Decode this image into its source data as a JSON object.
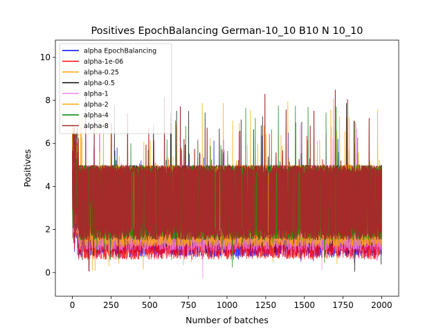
{
  "chart_data": {
    "type": "line",
    "title": "Positives EpochBalancing German-10_10 B10 N 10_10",
    "xlabel": "Number of batches",
    "ylabel": "Positives",
    "xlim": [
      -110,
      2110
    ],
    "ylim": [
      -1.1,
      10.8
    ],
    "xticks": [
      0,
      250,
      500,
      750,
      1000,
      1250,
      1500,
      1750,
      2000
    ],
    "yticks": [
      0,
      2,
      4,
      6,
      8,
      10
    ],
    "grid": false,
    "legend_position": "upper-left",
    "series": [
      {
        "name": "alpha EpochBalancing",
        "color": "#0000ff",
        "values_low": 0.5,
        "values_high": 6.5,
        "typical_low": 0.7,
        "typical_high": 5.0
      },
      {
        "name": "alpha-1e-06",
        "color": "#ff0000",
        "values_low": 0.5,
        "values_high": 6.5,
        "typical_low": 0.6,
        "typical_high": 5.0
      },
      {
        "name": "alpha-0.25",
        "color": "#ffa500",
        "values_low": 0.0,
        "values_high": 8.2,
        "typical_low": 1.2,
        "typical_high": 5.0
      },
      {
        "name": "alpha-0.5",
        "color": "#000000",
        "values_low": 0.0,
        "values_high": 8.0,
        "typical_low": 1.2,
        "typical_high": 5.0
      },
      {
        "name": "alpha-1",
        "color": "#ee82ee",
        "values_low": -0.6,
        "values_high": 7.0,
        "typical_low": 1.0,
        "typical_high": 5.0
      },
      {
        "name": "alpha-2",
        "color": "#ffa500",
        "values_low": 0.0,
        "values_high": 8.0,
        "typical_low": 1.2,
        "typical_high": 5.0
      },
      {
        "name": "alpha-4",
        "color": "#008000",
        "values_low": 0.0,
        "values_high": 8.0,
        "typical_low": 1.5,
        "typical_high": 5.0
      },
      {
        "name": "alpha-8",
        "color": "#a52a2a",
        "values_low": 0.0,
        "values_high": 8.9,
        "typical_low": 1.5,
        "typical_high": 5.0
      }
    ],
    "x_range": [
      0,
      2000
    ]
  }
}
